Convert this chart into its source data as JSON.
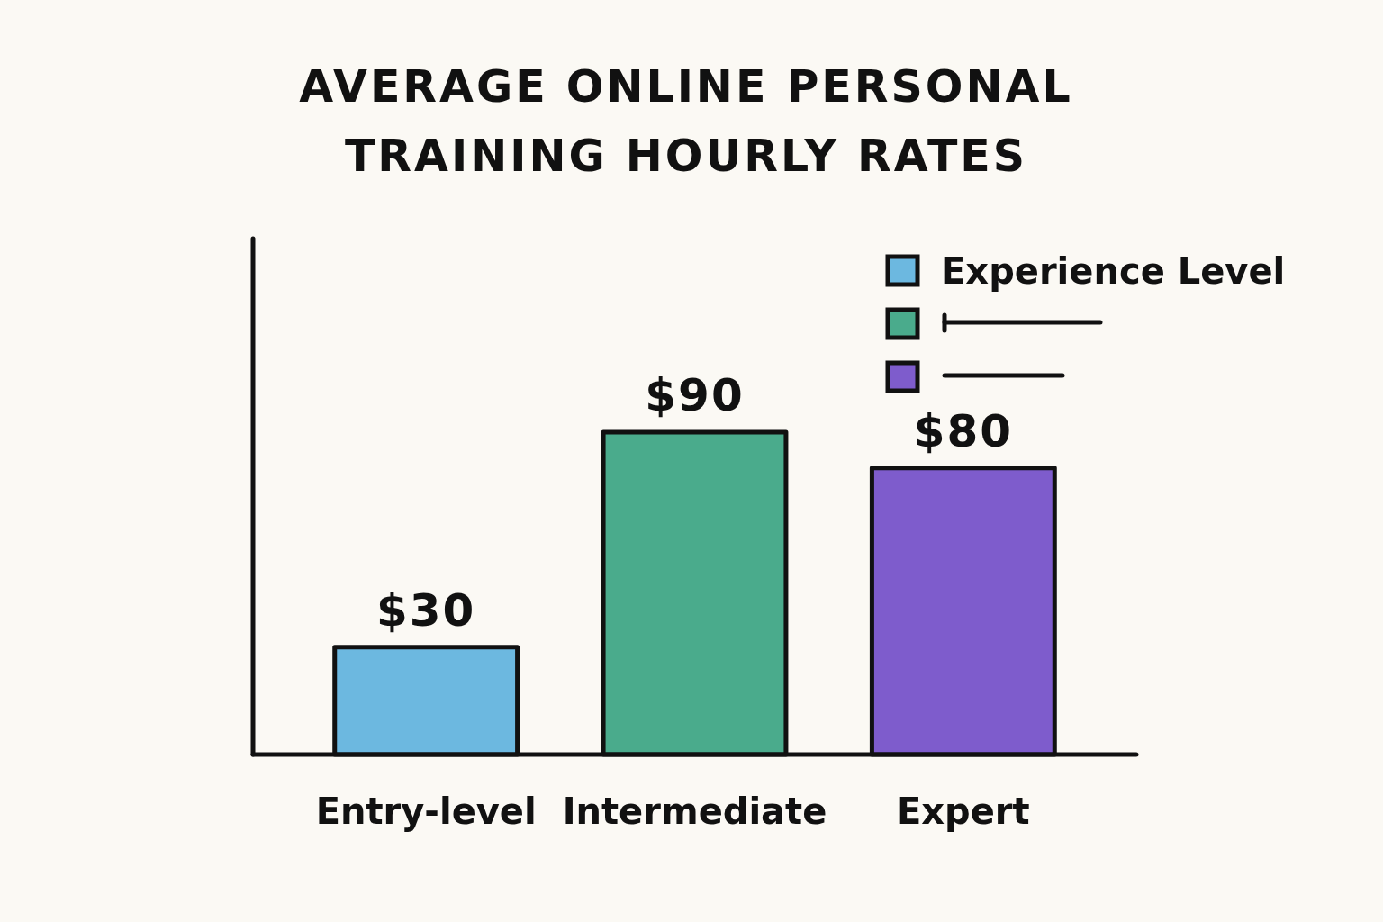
{
  "chart_data": {
    "type": "bar",
    "title": "AVERAGE ONLINE PERSONAL TRAINING HOURLY RATES",
    "categories": [
      "Entry-level",
      "Intermediate",
      "Expert"
    ],
    "series": [
      {
        "name": "Experience Level",
        "color": "#6cb8e0",
        "values": [
          30,
          null,
          null
        ],
        "value_labels": [
          "$30",
          null,
          null
        ]
      },
      {
        "color": "#4aab8c",
        "values": [
          null,
          90,
          null
        ],
        "value_labels": [
          null,
          "$90",
          null
        ]
      },
      {
        "color": "#7e5ccc",
        "values": [
          null,
          null,
          80
        ],
        "value_labels": [
          null,
          null,
          "$80"
        ]
      }
    ],
    "stacked": true,
    "legend": "top right"
  }
}
